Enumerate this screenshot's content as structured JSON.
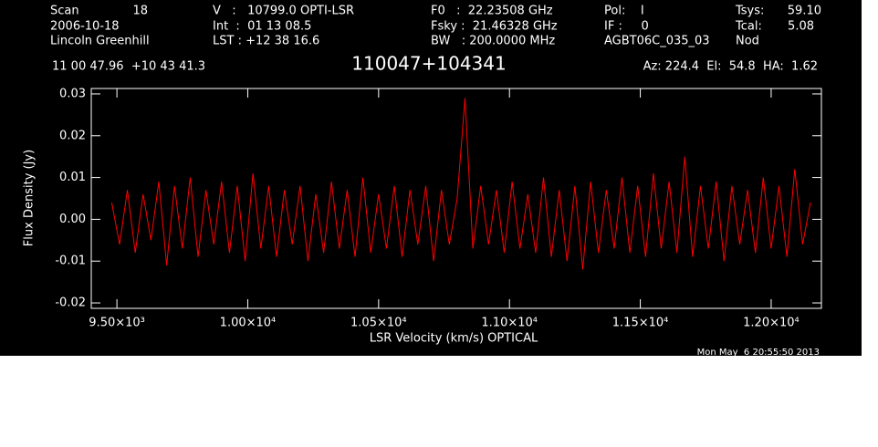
{
  "chart_data": {
    "type": "line",
    "title": "110047+104341",
    "header": [
      "Scan",
      "18",
      "2006-10-18",
      "Lincoln Greenhill",
      "V   :   10799.0 OPTI-LSR",
      "Int  :  01 13 08.5",
      "LST : +12 38 16.6",
      "F0   :  22.23508 GHz",
      "Fsky :  21.46328 GHz",
      "BW   : 200.0000 MHz",
      "Pol:    I",
      "IF :     0",
      "AGBT06C_035_03",
      "Tsys:",
      "59.10",
      "Tcal:",
      "5.08",
      "Nod",
      "11 00 47.96  +10 43 41.3",
      "Az: 224.4  El:  54.8  HA:  1.62",
      "Mon May  6 20:55:50 2013"
    ],
    "x_label": "LSR Velocity (km/s) OPTICAL",
    "y_label": "Flux Density (Jy)",
    "xlim": [
      9402,
      12192
    ],
    "ylim": [
      -0.0213,
      0.0313
    ],
    "xticks": [
      {
        "value": 9500,
        "label": "9.50×10³"
      },
      {
        "value": 10000,
        "label": "1.00×10⁴"
      },
      {
        "value": 10500,
        "label": "1.05×10⁴"
      },
      {
        "value": 11000,
        "label": "1.10×10⁴"
      },
      {
        "value": 11500,
        "label": "1.15×10⁴"
      },
      {
        "value": 12000,
        "label": "1.20×10⁴"
      }
    ],
    "yticks": [
      -0.02,
      -0.01,
      {
        "value": 0,
        "label": "0.00"
      },
      0.01,
      0.02,
      0.03
    ],
    "series": [
      {
        "color": "#ff0000",
        "x": [
          9480,
          9510,
          9540,
          9570,
          9600,
          9630,
          9660,
          9690,
          9720,
          9750,
          9780,
          9810,
          9840,
          9870,
          9900,
          9930,
          9960,
          9990,
          10020,
          10050,
          10080,
          10110,
          10140,
          10170,
          10200,
          10230,
          10260,
          10290,
          10320,
          10350,
          10380,
          10410,
          10440,
          10470,
          10500,
          10530,
          10560,
          10590,
          10620,
          10650,
          10680,
          10710,
          10740,
          10770,
          10800,
          10830,
          10860,
          10890,
          10920,
          10950,
          10980,
          11010,
          11040,
          11070,
          11100,
          11130,
          11160,
          11190,
          11220,
          11250,
          11280,
          11310,
          11340,
          11370,
          11400,
          11430,
          11460,
          11490,
          11520,
          11550,
          11580,
          11610,
          11640,
          11670,
          11700,
          11730,
          11760,
          11790,
          11820,
          11850,
          11880,
          11910,
          11940,
          11970,
          12000,
          12030,
          12060,
          12090,
          12120,
          12150
        ],
        "values": [
          0.004,
          -0.006,
          0.007,
          -0.008,
          0.006,
          -0.005,
          0.009,
          -0.011,
          0.008,
          -0.007,
          0.01,
          -0.009,
          0.007,
          -0.006,
          0.009,
          -0.008,
          0.008,
          -0.01,
          0.011,
          -0.007,
          0.008,
          -0.009,
          0.007,
          -0.006,
          0.008,
          -0.01,
          0.006,
          -0.008,
          0.009,
          -0.007,
          0.007,
          -0.009,
          0.01,
          -0.008,
          0.006,
          -0.007,
          0.008,
          -0.009,
          0.007,
          -0.006,
          0.008,
          -0.01,
          0.007,
          -0.006,
          0.005,
          0.029,
          -0.007,
          0.008,
          -0.006,
          0.007,
          -0.008,
          0.009,
          -0.007,
          0.006,
          -0.008,
          0.01,
          -0.009,
          0.007,
          -0.01,
          0.008,
          -0.012,
          0.009,
          -0.008,
          0.007,
          -0.007,
          0.01,
          -0.008,
          0.008,
          -0.009,
          0.011,
          -0.007,
          0.009,
          -0.008,
          0.015,
          -0.009,
          0.008,
          -0.007,
          0.009,
          -0.01,
          0.008,
          -0.006,
          0.007,
          -0.008,
          0.01,
          -0.007,
          0.008,
          -0.009,
          0.012,
          -0.006,
          0.004
        ]
      }
    ]
  }
}
